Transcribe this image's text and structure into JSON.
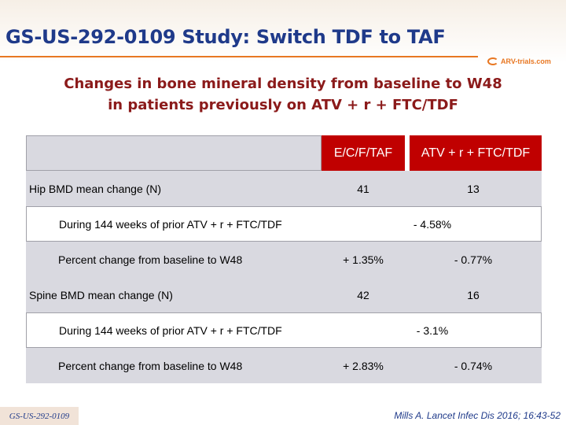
{
  "slide": {
    "title": "GS-US-292-0109 Study: Switch TDF to TAF",
    "subtitle_line1": "Changes in bone mineral density from baseline to W48",
    "subtitle_line2": "in patients previously on ATV + r + FTC/TDF",
    "logo_text": "ARV-trials.com",
    "footer_label": "GS-US-292-0109",
    "citation": "Mills A. Lancet Infec Dis 2016; 16:43-52"
  },
  "table": {
    "col1": "E/C/F/TAF",
    "col2": "ATV + r + FTC/TDF",
    "rows": [
      {
        "label": "Hip BMD mean change (N)",
        "c1": "41",
        "c2": "13"
      },
      {
        "label": "During 144 weeks of prior ATV + r + FTC/TDF",
        "span": "- 4.58%"
      },
      {
        "label": "Percent change from baseline to W48",
        "c1": "+ 1.35%",
        "c2": "- 0.77%"
      },
      {
        "label": "Spine BMD mean change (N)",
        "c1": "42",
        "c2": "16"
      },
      {
        "label": "During 144 weeks of prior ATV + r + FTC/TDF",
        "span": "- 3.1%"
      },
      {
        "label": "Percent change from baseline to W48",
        "c1": "+ 2.83%",
        "c2": "- 0.74%"
      }
    ]
  },
  "colors": {
    "accent": "#c00000",
    "title": "#1f3a8a",
    "subtitle": "#8b1a1a",
    "rule": "#e87722"
  }
}
